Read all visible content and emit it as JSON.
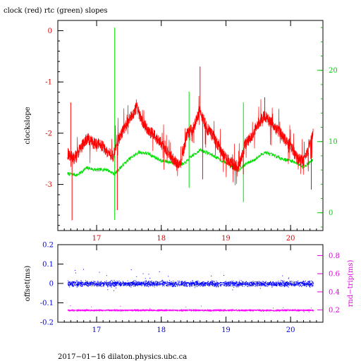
{
  "chart_data": [
    {
      "type": "line",
      "title": "clock (red) rtc (green) slopes",
      "ylabel": "clockslope",
      "x_ticks": [
        17,
        18,
        19,
        20
      ],
      "xlim": [
        16.4,
        20.5
      ],
      "y_left": {
        "ticks": [
          0,
          -1,
          -2,
          -3
        ],
        "ylim": [
          -3.9,
          0.2
        ],
        "color": "#e00000"
      },
      "y_right": {
        "ticks": [
          0,
          10,
          20
        ],
        "ylim": [
          -2.5,
          27
        ],
        "color": "#00e000"
      },
      "series": [
        {
          "color": "#ff0000",
          "axis": "left",
          "points": [
            [
              16.55,
              -2.4
            ],
            [
              16.65,
              -2.5
            ],
            [
              16.75,
              -2.3
            ],
            [
              16.85,
              -2.1
            ],
            [
              16.95,
              -2.2
            ],
            [
              17.05,
              -2.2
            ],
            [
              17.15,
              -2.35
            ],
            [
              17.25,
              -2.45
            ],
            [
              17.35,
              -2.1
            ],
            [
              17.45,
              -1.85
            ],
            [
              17.55,
              -1.65
            ],
            [
              17.62,
              -1.5
            ],
            [
              17.7,
              -1.75
            ],
            [
              17.8,
              -1.95
            ],
            [
              17.9,
              -2.05
            ],
            [
              18.0,
              -2.2
            ],
            [
              18.1,
              -2.35
            ],
            [
              18.2,
              -2.55
            ],
            [
              18.3,
              -2.6
            ],
            [
              18.4,
              -2.0
            ],
            [
              18.5,
              -1.9
            ],
            [
              18.6,
              -1.55
            ],
            [
              18.7,
              -1.9
            ],
            [
              18.8,
              -2.05
            ],
            [
              18.9,
              -2.3
            ],
            [
              19.0,
              -2.5
            ],
            [
              19.1,
              -2.6
            ],
            [
              19.2,
              -2.65
            ],
            [
              19.3,
              -2.2
            ],
            [
              19.4,
              -2.05
            ],
            [
              19.5,
              -1.8
            ],
            [
              19.6,
              -1.65
            ],
            [
              19.7,
              -1.8
            ],
            [
              19.8,
              -1.95
            ],
            [
              19.9,
              -2.1
            ],
            [
              20.0,
              -2.25
            ],
            [
              20.1,
              -2.5
            ],
            [
              20.2,
              -2.55
            ],
            [
              20.28,
              -2.3
            ],
            [
              20.35,
              -2.0
            ]
          ],
          "spikes": [
            [
              16.6,
              -1.4
            ],
            [
              16.62,
              -3.7
            ],
            [
              17.32,
              -3.5
            ],
            [
              18.6,
              -0.7
            ],
            [
              18.64,
              -2.9
            ],
            [
              19.27,
              -2.8
            ],
            [
              19.6,
              -1.3
            ],
            [
              20.32,
              -3.1
            ]
          ]
        },
        {
          "color": "#00e000",
          "axis": "right",
          "points": [
            [
              16.55,
              5.5
            ],
            [
              16.7,
              5.3
            ],
            [
              16.85,
              6.3
            ],
            [
              17.0,
              6.0
            ],
            [
              17.15,
              6.1
            ],
            [
              17.28,
              5.4
            ],
            [
              17.35,
              6.2
            ],
            [
              17.5,
              7.5
            ],
            [
              17.65,
              8.5
            ],
            [
              17.8,
              8.3
            ],
            [
              18.0,
              7.3
            ],
            [
              18.2,
              7.0
            ],
            [
              18.35,
              6.8
            ],
            [
              18.45,
              7.8
            ],
            [
              18.6,
              8.8
            ],
            [
              18.75,
              8.3
            ],
            [
              18.9,
              7.5
            ],
            [
              19.05,
              6.8
            ],
            [
              19.2,
              6.0
            ],
            [
              19.3,
              6.8
            ],
            [
              19.45,
              7.5
            ],
            [
              19.6,
              8.5
            ],
            [
              19.75,
              8.0
            ],
            [
              19.9,
              7.5
            ],
            [
              20.05,
              7.2
            ],
            [
              20.2,
              6.4
            ],
            [
              20.35,
              7.5
            ]
          ],
          "spikes": [
            [
              17.28,
              26
            ],
            [
              17.28,
              -1.0
            ],
            [
              18.43,
              17.0
            ],
            [
              18.43,
              3.5
            ],
            [
              19.27,
              15.5
            ],
            [
              19.27,
              1.5
            ]
          ]
        }
      ]
    },
    {
      "type": "scatter",
      "ylabel": "offset(ms)",
      "y2label": "rnd−trip(ms)",
      "x_ticks": [
        17,
        18,
        19,
        20
      ],
      "xlim": [
        16.4,
        20.5
      ],
      "y_left": {
        "ticks": [
          0.2,
          0.1,
          0,
          -0.1,
          -0.2
        ],
        "ylim": [
          -0.2,
          0.2
        ],
        "color": "#0000e0"
      },
      "y_right": {
        "ticks": [
          0.2,
          0.4,
          0.6,
          0.8
        ],
        "ylim": [
          0.065,
          0.92
        ],
        "color": "#e000e0"
      },
      "series": [
        {
          "color": "#0000ff",
          "axis": "left",
          "center": 0.0,
          "spread": 0.02,
          "x_range": [
            16.55,
            20.35
          ]
        },
        {
          "color": "#ff00ff",
          "axis": "right",
          "center": 0.2,
          "spread": 0.012,
          "x_range": [
            16.55,
            20.35
          ]
        }
      ]
    }
  ],
  "footer": "2017−01−16  dilaton.physics.ubc.ca"
}
